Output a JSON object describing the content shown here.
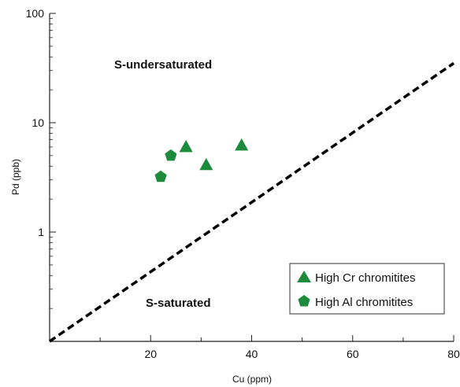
{
  "chart_data": {
    "type": "scatter",
    "xlabel": "Cu (ppm)",
    "ylabel": "Pd (ppb)",
    "xlim": [
      0,
      80
    ],
    "ylim": [
      0.1,
      100
    ],
    "y_scale": "log",
    "x_ticks": [
      20,
      40,
      60,
      80
    ],
    "x_tick_labels": [
      "20",
      "40",
      "60",
      "80"
    ],
    "x_minor_ticks": [
      10,
      30,
      50,
      70
    ],
    "y_ticks": [
      1,
      10,
      100
    ],
    "y_tick_labels": [
      "1",
      "10",
      "100"
    ],
    "grid": false,
    "legend_position": "bottom-right",
    "series": [
      {
        "name": "High Cr chromitites",
        "marker": "triangle",
        "color": "#1e8a3c",
        "points": [
          [
            27,
            6.0
          ],
          [
            31,
            4.1
          ],
          [
            38,
            6.2
          ]
        ]
      },
      {
        "name": "High Al chromitites",
        "marker": "pentagon",
        "color": "#1e8a3c",
        "points": [
          [
            22,
            3.2
          ],
          [
            24,
            5.0
          ]
        ]
      }
    ],
    "boundary_line": {
      "style": "dashed",
      "color": "#000000",
      "from": [
        0,
        0.1
      ],
      "to": [
        80,
        35
      ]
    },
    "annotations": [
      "S-undersaturated",
      "S-saturated"
    ]
  }
}
